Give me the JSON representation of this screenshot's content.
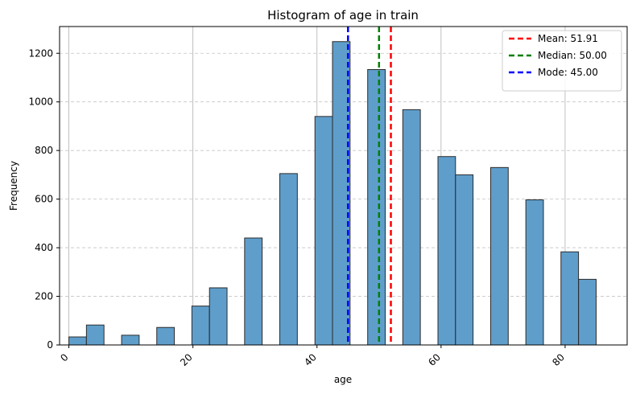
{
  "chart_data": {
    "type": "bar",
    "title": "Histogram of age in train",
    "xlabel": "age",
    "ylabel": "Frequency",
    "xlim": [
      -1.5,
      90
    ],
    "ylim": [
      0,
      1310
    ],
    "xticks": [
      0,
      20,
      40,
      60,
      80
    ],
    "yticks": [
      0,
      200,
      400,
      600,
      800,
      1000,
      1200
    ],
    "bin_width": 2.83,
    "bins": [
      {
        "x": 0.0,
        "value": 33
      },
      {
        "x": 2.83,
        "value": 82
      },
      {
        "x": 8.5,
        "value": 40
      },
      {
        "x": 14.17,
        "value": 72
      },
      {
        "x": 19.83,
        "value": 160
      },
      {
        "x": 22.67,
        "value": 235
      },
      {
        "x": 28.33,
        "value": 440
      },
      {
        "x": 34.0,
        "value": 705
      },
      {
        "x": 39.67,
        "value": 940
      },
      {
        "x": 42.5,
        "value": 1248
      },
      {
        "x": 48.17,
        "value": 1133
      },
      {
        "x": 53.83,
        "value": 968
      },
      {
        "x": 59.5,
        "value": 775
      },
      {
        "x": 62.33,
        "value": 700
      },
      {
        "x": 68.0,
        "value": 730
      },
      {
        "x": 73.67,
        "value": 597
      },
      {
        "x": 79.33,
        "value": 383
      },
      {
        "x": 82.17,
        "value": 270
      }
    ],
    "bar_color": "#5f9ecb",
    "bar_edge": "#2b2b2b",
    "grid": true,
    "lines": [
      {
        "label": "Mean: 51.91",
        "x": 51.91,
        "color": "#ff0000"
      },
      {
        "label": "Median: 50.00",
        "x": 50.0,
        "color": "#008000"
      },
      {
        "label": "Mode: 45.00",
        "x": 45.0,
        "color": "#0000ff"
      }
    ],
    "legend_position": "top-right"
  }
}
